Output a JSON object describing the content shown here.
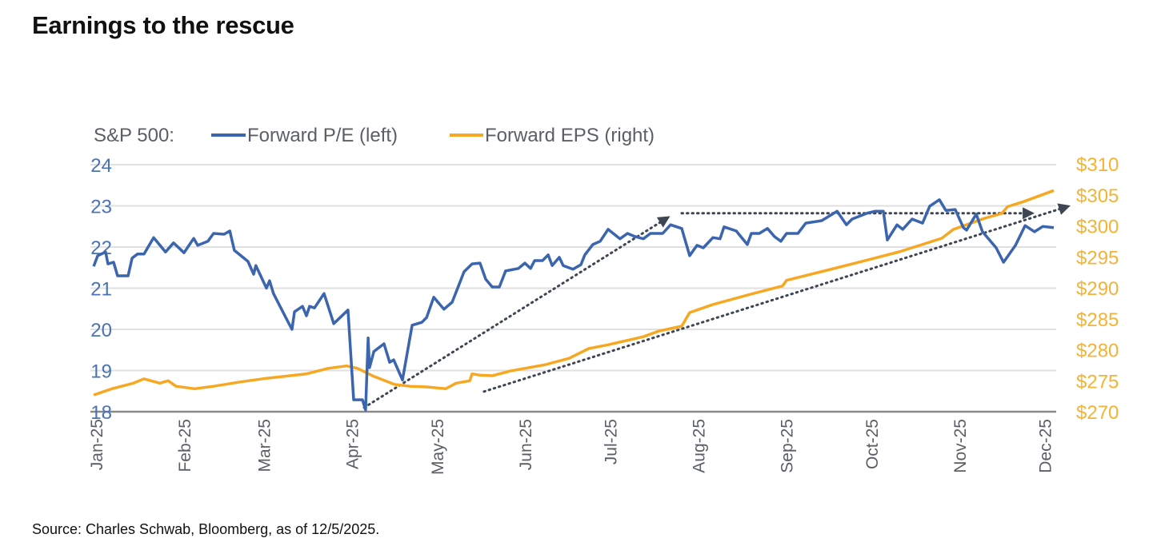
{
  "title": "Earnings to the rescue",
  "source": "Source: Charles Schwab, Bloomberg, as of 12/5/2025.",
  "colors": {
    "pe": "#3b65ae",
    "eps": "#f7a823",
    "grid": "#e0e0e0",
    "arrow": "#3d4652"
  },
  "chart_data": {
    "type": "line",
    "legend_prefix": "S&P 500:",
    "legend_placement": "top-left",
    "x_unit": "days since Jan 1, 2025",
    "x_ticks": [
      {
        "label": "Jan-25",
        "day": 0
      },
      {
        "label": "Feb-25",
        "day": 31
      },
      {
        "label": "Mar-25",
        "day": 59
      },
      {
        "label": "Apr-25",
        "day": 90
      },
      {
        "label": "May-25",
        "day": 120
      },
      {
        "label": "Jun-25",
        "day": 151
      },
      {
        "label": "Jul-25",
        "day": 181
      },
      {
        "label": "Aug-25",
        "day": 212
      },
      {
        "label": "Sep-25",
        "day": 243
      },
      {
        "label": "Oct-25",
        "day": 273
      },
      {
        "label": "Nov-25",
        "day": 304
      },
      {
        "label": "Dec-25",
        "day": 334
      }
    ],
    "y_left": {
      "ylim": [
        18,
        24
      ],
      "ticks": [
        "18",
        "19",
        "20",
        "21",
        "22",
        "23",
        "24"
      ]
    },
    "y_right": {
      "ylim": [
        270,
        310
      ],
      "ticks": [
        "$270",
        "$275",
        "$280",
        "$285",
        "$290",
        "$295",
        "$300",
        "$305",
        "$310"
      ]
    },
    "grid": true,
    "series": [
      {
        "name": "Forward P/E (left)",
        "axis": "left",
        "points": [
          [
            0.6,
            21.53
          ],
          [
            2,
            21.79
          ],
          [
            4.8,
            21.88
          ],
          [
            5.6,
            21.59
          ],
          [
            7.6,
            21.63
          ],
          [
            9,
            21.3
          ],
          [
            12.7,
            21.3
          ],
          [
            14.1,
            21.73
          ],
          [
            16,
            21.83
          ],
          [
            18.3,
            21.83
          ],
          [
            21.7,
            22.23
          ],
          [
            25.9,
            21.88
          ],
          [
            28.7,
            22.1
          ],
          [
            32.4,
            21.86
          ],
          [
            35.8,
            22.21
          ],
          [
            37.2,
            22.04
          ],
          [
            40.8,
            22.14
          ],
          [
            42.8,
            22.33
          ],
          [
            46.5,
            22.31
          ],
          [
            48.5,
            22.39
          ],
          [
            50.1,
            21.92
          ],
          [
            54.9,
            21.65
          ],
          [
            56.9,
            21.34
          ],
          [
            57.7,
            21.55
          ],
          [
            61.4,
            21.0
          ],
          [
            62.5,
            21.18
          ],
          [
            63.9,
            20.87
          ],
          [
            68.2,
            20.29
          ],
          [
            70.4,
            20.0
          ],
          [
            71.3,
            20.43
          ],
          [
            74.1,
            20.56
          ],
          [
            75.5,
            20.33
          ],
          [
            76.6,
            20.56
          ],
          [
            78.3,
            20.52
          ],
          [
            81.7,
            20.87
          ],
          [
            85.1,
            20.14
          ],
          [
            90.1,
            20.47
          ],
          [
            92.1,
            18.29
          ],
          [
            95.2,
            18.29
          ],
          [
            96.3,
            18.04
          ],
          [
            97.2,
            19.79
          ],
          [
            97.7,
            19.07
          ],
          [
            99.2,
            19.46
          ],
          [
            102.8,
            19.65
          ],
          [
            104.8,
            19.2
          ],
          [
            106.2,
            19.26
          ],
          [
            109.3,
            18.77
          ],
          [
            112.7,
            20.1
          ],
          [
            116.1,
            20.17
          ],
          [
            117.8,
            20.29
          ],
          [
            120.3,
            20.78
          ],
          [
            123.9,
            20.49
          ],
          [
            126.8,
            20.66
          ],
          [
            131,
            21.4
          ],
          [
            133.8,
            21.59
          ],
          [
            136.6,
            21.61
          ],
          [
            138.6,
            21.22
          ],
          [
            140.9,
            21.03
          ],
          [
            143.4,
            21.03
          ],
          [
            145.6,
            21.42
          ],
          [
            150.1,
            21.48
          ],
          [
            152.4,
            21.61
          ],
          [
            154.4,
            21.48
          ],
          [
            155.8,
            21.67
          ],
          [
            158.6,
            21.67
          ],
          [
            160.6,
            21.81
          ],
          [
            162,
            21.55
          ],
          [
            164.5,
            21.75
          ],
          [
            165.9,
            21.55
          ],
          [
            169.3,
            21.46
          ],
          [
            172.1,
            21.57
          ],
          [
            173.5,
            21.81
          ],
          [
            176.3,
            22.06
          ],
          [
            178.9,
            22.14
          ],
          [
            181.7,
            22.43
          ],
          [
            185.9,
            22.2
          ],
          [
            188.5,
            22.33
          ],
          [
            191.3,
            22.25
          ],
          [
            194.1,
            22.2
          ],
          [
            196.6,
            22.33
          ],
          [
            200.9,
            22.33
          ],
          [
            203.7,
            22.54
          ],
          [
            207.6,
            22.45
          ],
          [
            210.4,
            21.79
          ],
          [
            213,
            22.04
          ],
          [
            215.2,
            21.98
          ],
          [
            218.6,
            22.23
          ],
          [
            221.1,
            22.2
          ],
          [
            222.5,
            22.49
          ],
          [
            226.8,
            22.39
          ],
          [
            230.7,
            22.06
          ],
          [
            232.1,
            22.33
          ],
          [
            234.9,
            22.33
          ],
          [
            237.8,
            22.45
          ],
          [
            240.3,
            22.25
          ],
          [
            242.5,
            22.14
          ],
          [
            244.5,
            22.33
          ],
          [
            248.5,
            22.33
          ],
          [
            251.3,
            22.58
          ],
          [
            256.9,
            22.64
          ],
          [
            262.3,
            22.87
          ],
          [
            265.6,
            22.54
          ],
          [
            267.6,
            22.68
          ],
          [
            273.2,
            22.83
          ],
          [
            275.8,
            22.87
          ],
          [
            278.6,
            22.87
          ],
          [
            280,
            22.17
          ],
          [
            283.4,
            22.54
          ],
          [
            285.4,
            22.43
          ],
          [
            288.7,
            22.68
          ],
          [
            292.4,
            22.58
          ],
          [
            294.9,
            22.99
          ],
          [
            298.3,
            23.15
          ],
          [
            300.6,
            22.89
          ],
          [
            303.9,
            22.91
          ],
          [
            306.8,
            22.47
          ],
          [
            307.9,
            22.41
          ],
          [
            311.3,
            22.8
          ],
          [
            313.5,
            22.37
          ],
          [
            318.3,
            21.98
          ],
          [
            320.9,
            21.63
          ],
          [
            325.1,
            22.04
          ],
          [
            328.5,
            22.52
          ],
          [
            331.8,
            22.37
          ],
          [
            334.7,
            22.5
          ],
          [
            338.6,
            22.47
          ]
        ]
      },
      {
        "name": "Forward EPS (right)",
        "axis": "right",
        "points": [
          [
            0.6,
            272.7
          ],
          [
            7,
            273.7
          ],
          [
            14.6,
            274.6
          ],
          [
            18.3,
            275.3
          ],
          [
            23.9,
            274.6
          ],
          [
            26.8,
            275.0
          ],
          [
            29.6,
            274.1
          ],
          [
            36.1,
            273.7
          ],
          [
            42.8,
            274.1
          ],
          [
            52.1,
            274.8
          ],
          [
            61.4,
            275.4
          ],
          [
            75.5,
            276.1
          ],
          [
            83.1,
            277.0
          ],
          [
            89.6,
            277.4
          ],
          [
            93.5,
            277.0
          ],
          [
            99.2,
            275.7
          ],
          [
            106.5,
            274.4
          ],
          [
            112.1,
            274.1
          ],
          [
            117.8,
            274.0
          ],
          [
            124.5,
            273.7
          ],
          [
            128.2,
            274.6
          ],
          [
            133,
            275.0
          ],
          [
            133.8,
            276.1
          ],
          [
            136.6,
            275.9
          ],
          [
            140.9,
            275.8
          ],
          [
            147.6,
            276.6
          ],
          [
            159.7,
            277.6
          ],
          [
            167.9,
            278.6
          ],
          [
            174.9,
            280.2
          ],
          [
            181.7,
            280.8
          ],
          [
            194.1,
            282.1
          ],
          [
            199.4,
            283.0
          ],
          [
            207.6,
            283.8
          ],
          [
            210.4,
            286.0
          ],
          [
            218.6,
            287.3
          ],
          [
            232.1,
            289.0
          ],
          [
            243.1,
            290.3
          ],
          [
            244.5,
            291.2
          ],
          [
            259.4,
            292.9
          ],
          [
            273.2,
            294.5
          ],
          [
            284.2,
            295.8
          ],
          [
            299.2,
            298.0
          ],
          [
            303.1,
            299.4
          ],
          [
            314.1,
            301.2
          ],
          [
            320.3,
            302.0
          ],
          [
            322.3,
            303.1
          ],
          [
            327.9,
            303.9
          ],
          [
            338.6,
            305.7
          ]
        ]
      }
    ],
    "annotations": [
      {
        "type": "dotted-arrow",
        "axis": "left",
        "from": [
          95.8,
          18.1
        ],
        "to": [
          202.8,
          22.72
        ]
      },
      {
        "type": "dotted-arrow",
        "axis": "left",
        "from": [
          207.6,
          22.82
        ],
        "to": [
          331,
          22.82
        ]
      },
      {
        "type": "dotted-arrow",
        "axis": "left",
        "from": [
          138,
          18.49
        ],
        "to": [
          343.7,
          22.99
        ]
      }
    ]
  }
}
